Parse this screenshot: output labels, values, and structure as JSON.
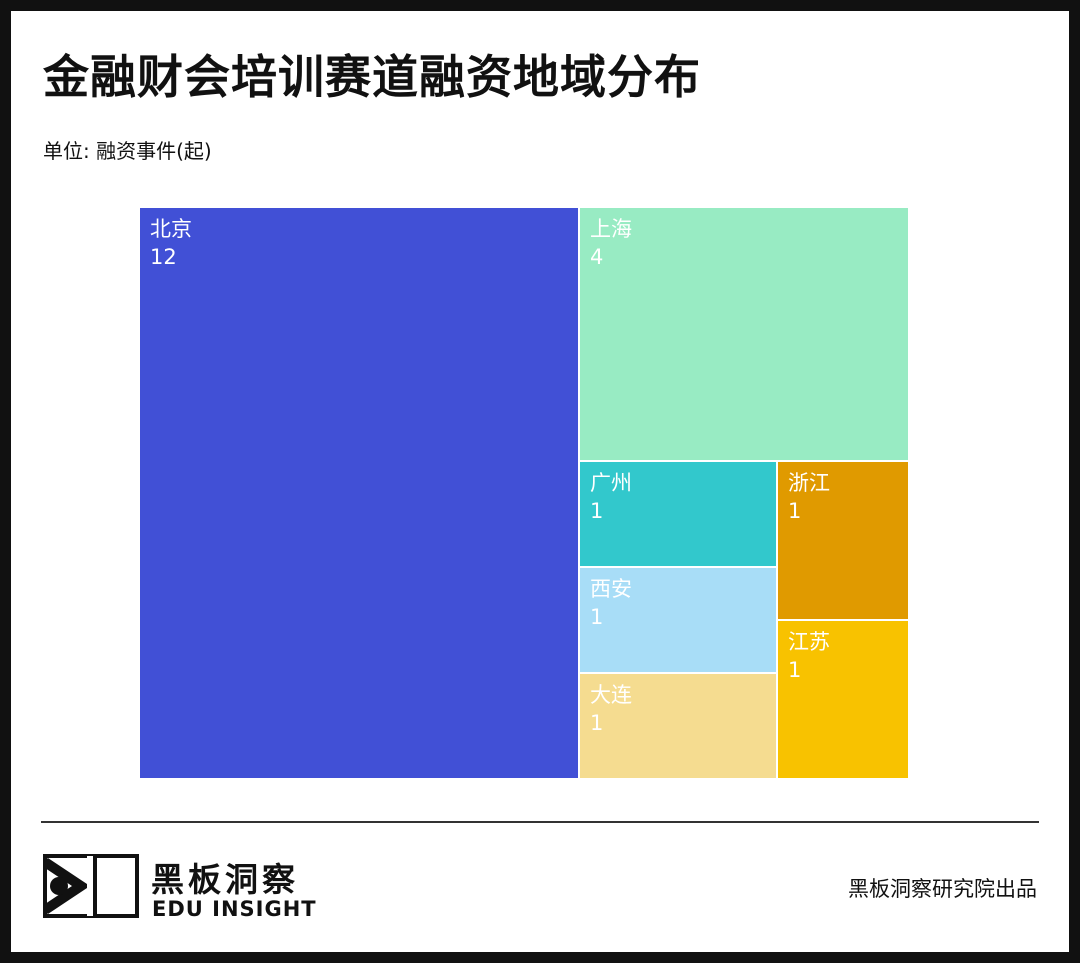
{
  "title": "金融财会培训赛道融资地域分布",
  "unit_label": "单位: 融资事件(起)",
  "chart_data": {
    "type": "treemap",
    "title": "金融财会培训赛道融资地域分布",
    "unit": "融资事件(起)",
    "items": [
      {
        "name": "北京",
        "value": 12,
        "color": "#4150D6",
        "text_color": "#ffffff"
      },
      {
        "name": "上海",
        "value": 4,
        "color": "#98EBC3",
        "text_color": "#ffffff"
      },
      {
        "name": "广州",
        "value": 1,
        "color": "#32C8CC",
        "text_color": "#ffffff"
      },
      {
        "name": "西安",
        "value": 1,
        "color": "#A8DDF7",
        "text_color": "#ffffff"
      },
      {
        "name": "大连",
        "value": 1,
        "color": "#F5DC90",
        "text_color": "#ffffff"
      },
      {
        "name": "浙江",
        "value": 1,
        "color": "#E09A00",
        "text_color": "#ffffff"
      },
      {
        "name": "江苏",
        "value": 1,
        "color": "#F8C200",
        "text_color": "#ffffff"
      }
    ]
  },
  "logo": {
    "name_cn": "黑板洞察",
    "name_en": "EDU INSIGHT",
    "icon": "eye-frame-logo-icon"
  },
  "footer_note": "黑板洞察研究院出品"
}
